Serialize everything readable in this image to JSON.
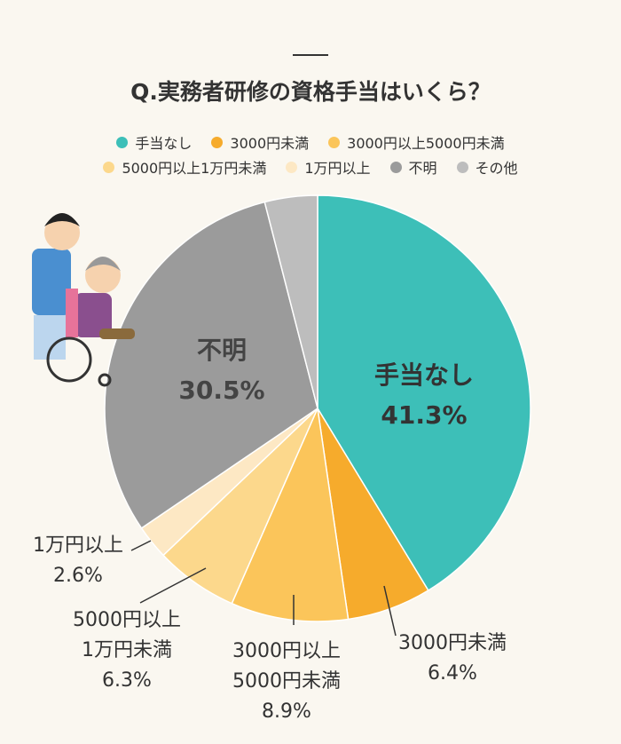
{
  "chart_data": {
    "type": "pie",
    "title": "Q.実務者研修の資格手当はいくら？",
    "categories": [
      "手当なし",
      "3000円未満",
      "3000円以上5000円未満",
      "5000円以上1万円未満",
      "1万円以上",
      "不明",
      "その他"
    ],
    "values": [
      41.3,
      6.4,
      8.9,
      6.3,
      2.6,
      30.5,
      4.0
    ],
    "value_labels": [
      "41.3%",
      "6.4%",
      "8.9%",
      "6.3%",
      "2.6%",
      "30.5%",
      null
    ],
    "data_labels": [
      "手当なし",
      "3000円未満",
      "3000円以上\n5000円未満",
      "5000円以上\n1万円未満",
      "1万円以上",
      "不明",
      null
    ],
    "colors": [
      "#3dbfb8",
      "#f6ab2c",
      "#fbc55a",
      "#fcd88c",
      "#fde8c4",
      "#9b9b9b",
      "#bdbdbd"
    ]
  }
}
